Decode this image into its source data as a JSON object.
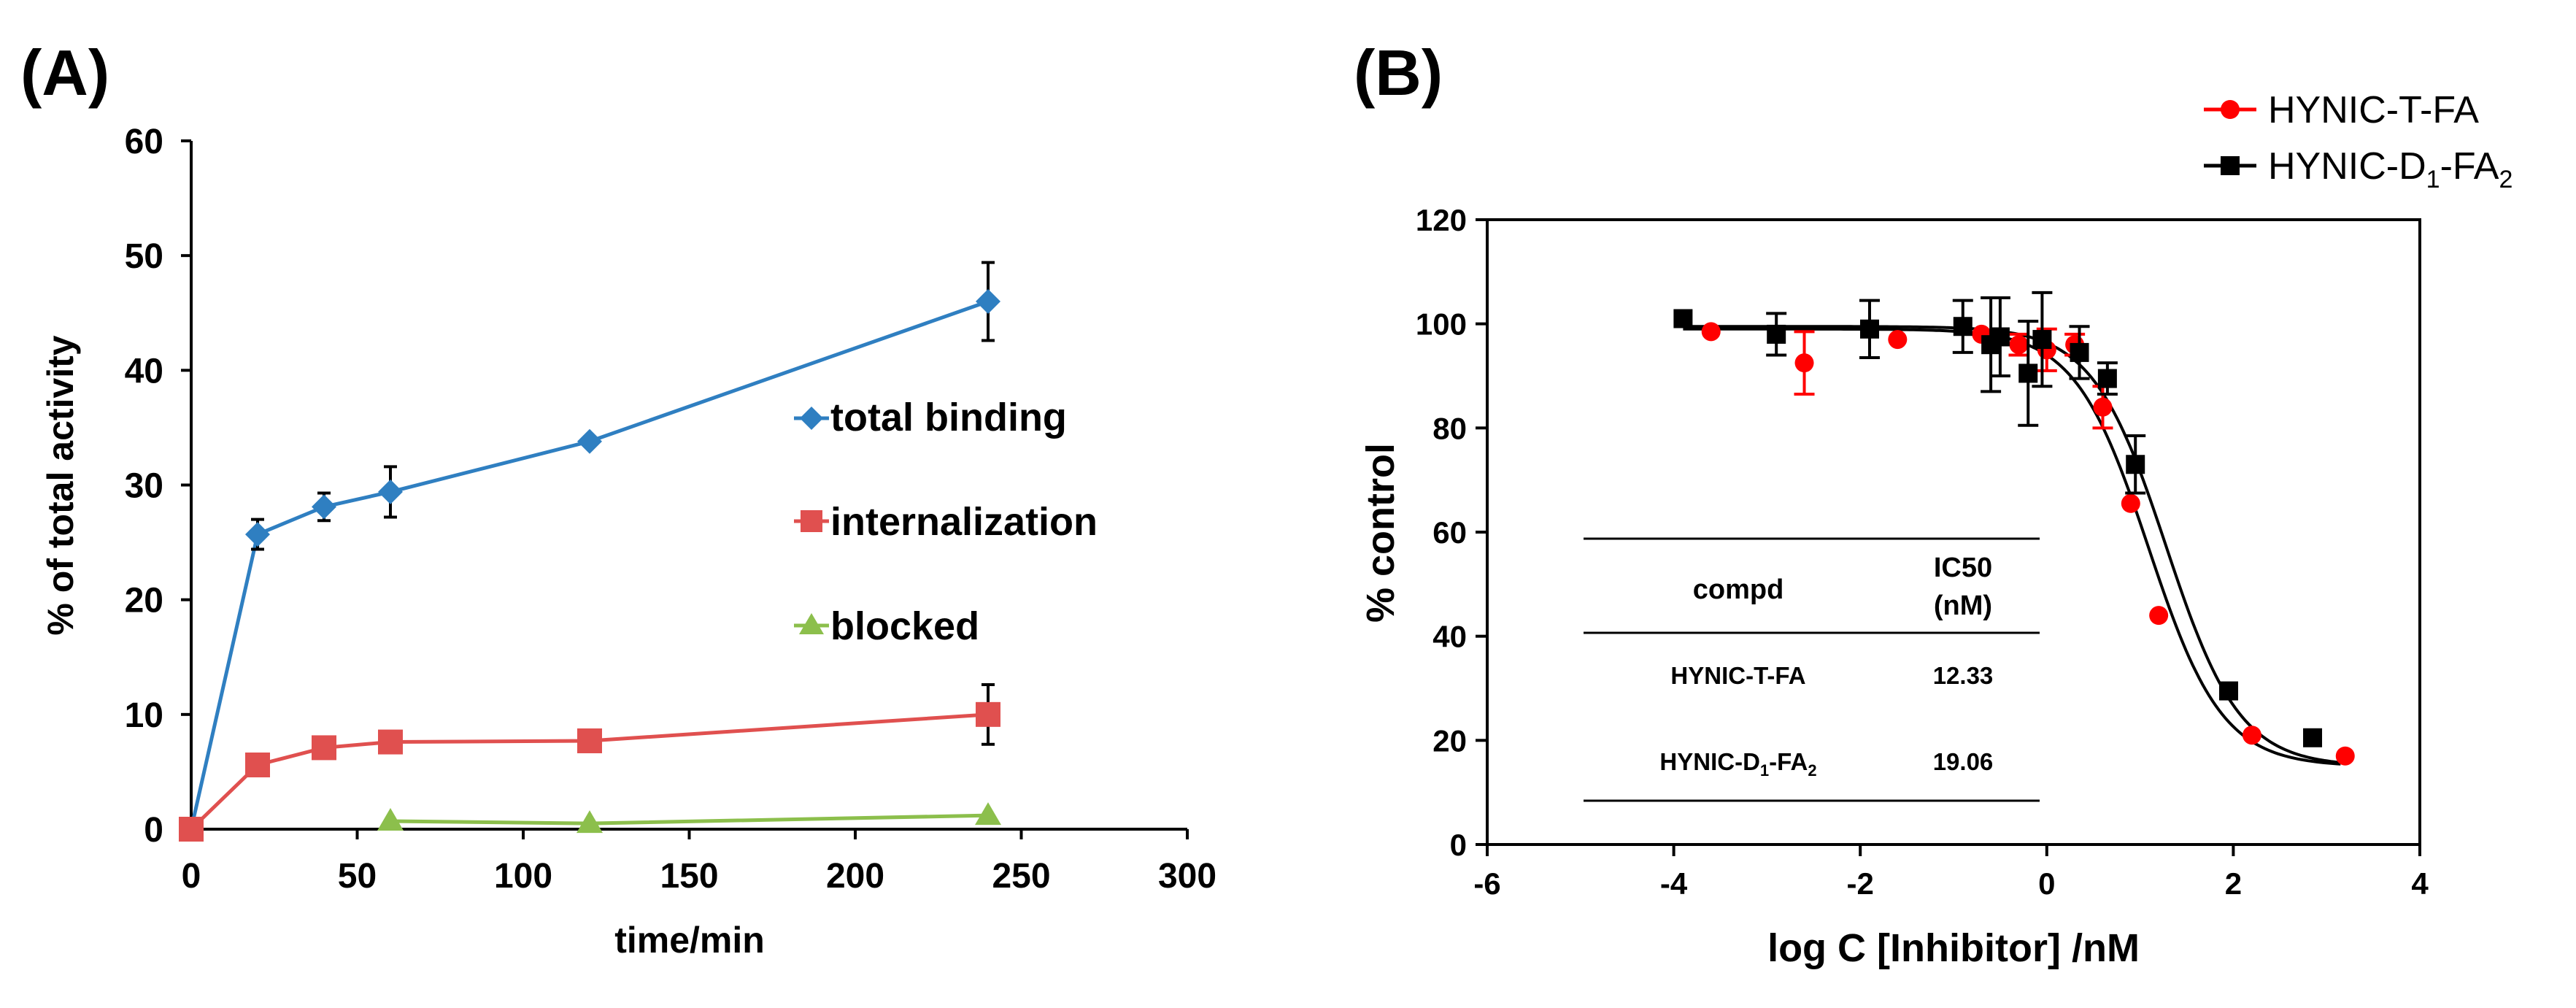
{
  "colors": {
    "blue": "#2f7fc1",
    "red_square": "#e0504f",
    "green": "#8cbf4c",
    "red_dot": "#ff0000",
    "black": "#000000"
  },
  "chart_data": [
    {
      "panel_label": "(A)",
      "type": "line",
      "xlabel": "time/min",
      "ylabel": "% of total activity",
      "xlim": [
        0,
        300
      ],
      "ylim": [
        0,
        60
      ],
      "xticks": [
        "0",
        "50",
        "100",
        "150",
        "200",
        "250",
        "300"
      ],
      "yticks": [
        "0",
        "10",
        "20",
        "30",
        "40",
        "50",
        "60"
      ],
      "legend_position": "right",
      "series": [
        {
          "name": "total binding",
          "marker": "diamond",
          "color": "#2f7fc1",
          "x": [
            0,
            20,
            40,
            60,
            120,
            240
          ],
          "y": [
            0,
            25.7,
            28.1,
            29.4,
            33.8,
            46.0
          ],
          "err": [
            0,
            1.3,
            1.2,
            2.2,
            0,
            3.4
          ]
        },
        {
          "name": "internalization",
          "marker": "square",
          "color": "#e0504f",
          "x": [
            0,
            20,
            40,
            60,
            120,
            240
          ],
          "y": [
            0,
            5.6,
            7.1,
            7.6,
            7.7,
            10.0
          ],
          "err": [
            0,
            0,
            0,
            0,
            0,
            2.6
          ]
        },
        {
          "name": "blocked",
          "marker": "triangle",
          "color": "#8cbf4c",
          "x": [
            60,
            120,
            240
          ],
          "y": [
            0.7,
            0.5,
            1.2
          ],
          "err": [
            0,
            0,
            0
          ]
        }
      ]
    },
    {
      "panel_label": "(B)",
      "type": "scatter",
      "xlabel": "log C [Inhibitor] /nM",
      "ylabel": "% control",
      "xlim": [
        -6,
        4
      ],
      "ylim": [
        0,
        120
      ],
      "xticks": [
        "-6",
        "-4",
        "-2",
        "0",
        "2",
        "4"
      ],
      "yticks": [
        "0",
        "20",
        "40",
        "60",
        "80",
        "100",
        "120"
      ],
      "legend_position": "top-right",
      "series": [
        {
          "name": "HYNIC-T-FA",
          "legend_main": "HYNIC-T-FA",
          "marker": "circle",
          "color": "#ff0000",
          "x": [
            -3.6,
            -2.6,
            -1.6,
            -0.7,
            -0.3,
            0,
            0.3,
            0.6,
            0.9,
            1.2,
            2.2,
            3.2
          ],
          "y": [
            98.5,
            92.5,
            97,
            98,
            96,
            95,
            96,
            84,
            65.5,
            44,
            21,
            17
          ],
          "err": [
            0,
            6,
            0,
            0,
            2,
            4,
            2,
            4,
            0,
            0,
            0,
            0
          ],
          "fit": {
            "top": 99,
            "bottom": 15,
            "logIC50": 1.091,
            "hill": -1.1
          }
        },
        {
          "name": "HYNIC-D1-FA2",
          "legend_main": "HYNIC-D",
          "legend_sub1": "1",
          "legend_mid": "-FA",
          "legend_sub2": "2",
          "marker": "square",
          "color": "#000000",
          "x": [
            -3.9,
            -2.9,
            -1.9,
            -0.9,
            -0.6,
            -0.5,
            -0.2,
            -0.05,
            0.35,
            0.65,
            0.95,
            1.95,
            2.85
          ],
          "y": [
            101,
            98,
            99,
            99.5,
            96,
            97.5,
            90.5,
            97,
            94.5,
            89.5,
            73,
            29.5,
            20.5
          ],
          "err": [
            0,
            4,
            5.5,
            5,
            9,
            7.5,
            10,
            9,
            5,
            3,
            5.5,
            0,
            0
          ],
          "fit": {
            "top": 99.5,
            "bottom": 15,
            "logIC50": 1.28,
            "hill": -1.1
          }
        }
      ],
      "table": {
        "header_compd": "compd",
        "header_ic50_line1": "IC50",
        "header_ic50_line2": "(nM)",
        "row1_compd": "HYNIC-T-FA",
        "row1_value": "12.33",
        "row2_compd_main": "HYNIC-D",
        "row2_compd_sub1": "1",
        "row2_compd_mid": "-FA",
        "row2_compd_sub2": "2",
        "row2_value": "19.06"
      }
    }
  ]
}
